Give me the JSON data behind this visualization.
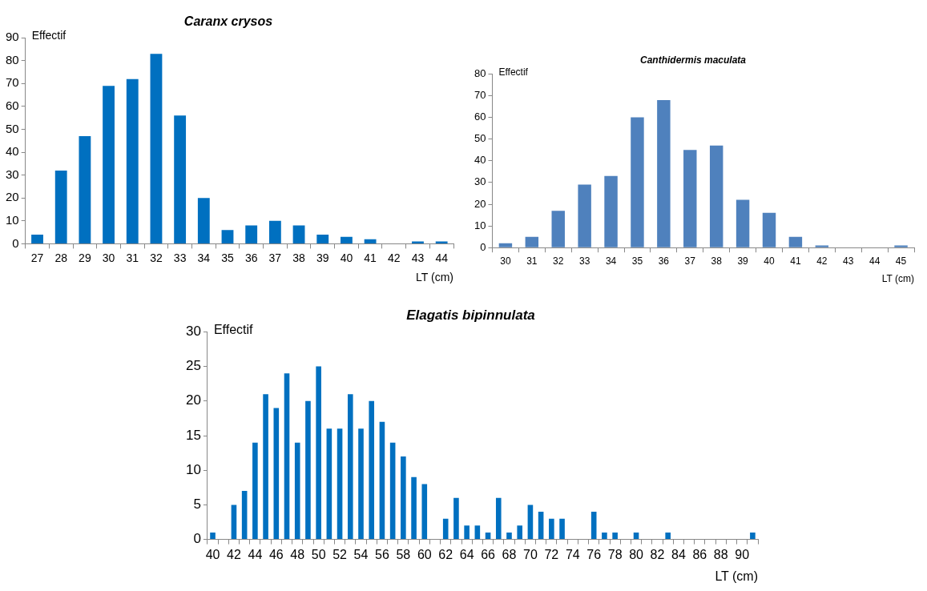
{
  "chart_data": [
    {
      "type": "bar",
      "title": "Caranx crysos",
      "ylabel": "Effectif",
      "xlabel": "LT (cm)",
      "categories": [
        "27",
        "28",
        "29",
        "30",
        "31",
        "32",
        "33",
        "34",
        "35",
        "36",
        "37",
        "38",
        "39",
        "40",
        "41",
        "42",
        "43",
        "44"
      ],
      "values": [
        4,
        32,
        47,
        69,
        72,
        83,
        56,
        20,
        6,
        8,
        10,
        8,
        4,
        3,
        2,
        0,
        1,
        1
      ],
      "color": "#0070c0",
      "ylim": [
        0,
        90
      ],
      "yticks": [
        0,
        10,
        20,
        30,
        40,
        50,
        60,
        70,
        80,
        90
      ],
      "grid": false,
      "legend": false
    },
    {
      "type": "bar",
      "title": "Canthidermis maculata",
      "ylabel": "Effectif",
      "xlabel": "LT (cm)",
      "categories": [
        "30",
        "31",
        "32",
        "33",
        "34",
        "35",
        "36",
        "37",
        "38",
        "39",
        "40",
        "41",
        "42",
        "43",
        "44",
        "45"
      ],
      "values": [
        2,
        5,
        17,
        29,
        33,
        60,
        68,
        45,
        47,
        22,
        16,
        5,
        1,
        0,
        0,
        1
      ],
      "color": "#4f81bd",
      "ylim": [
        0,
        80
      ],
      "yticks": [
        0,
        10,
        20,
        30,
        40,
        50,
        60,
        70,
        80
      ],
      "grid": false,
      "legend": false
    },
    {
      "type": "bar",
      "title": "Elagatis bipinnulata",
      "ylabel": "Effectif",
      "xlabel": "LT (cm)",
      "categories": [
        "40",
        null,
        "42",
        null,
        "44",
        null,
        "46",
        null,
        "48",
        null,
        "50",
        null,
        "52",
        null,
        "54",
        null,
        "56",
        null,
        "58",
        null,
        "60",
        null,
        "62",
        null,
        "64",
        null,
        "66",
        null,
        "68",
        null,
        "70",
        null,
        "72",
        null,
        "74",
        null,
        "76",
        null,
        "78",
        null,
        "80",
        null,
        "82",
        null,
        "84",
        null,
        "86",
        null,
        "88",
        null,
        "90",
        null
      ],
      "values": [
        1,
        0,
        5,
        7,
        14,
        21,
        19,
        24,
        14,
        20,
        25,
        16,
        16,
        21,
        16,
        20,
        17,
        14,
        12,
        9,
        8,
        0,
        3,
        6,
        2,
        2,
        1,
        6,
        1,
        2,
        5,
        4,
        3,
        3,
        0,
        0,
        4,
        1,
        1,
        0,
        1,
        0,
        0,
        1,
        0,
        0,
        0,
        0,
        0,
        0,
        0,
        1
      ],
      "color": "#0070c0",
      "ylim": [
        0,
        30
      ],
      "yticks": [
        0,
        5,
        10,
        15,
        20,
        25,
        30
      ],
      "grid": false,
      "legend": false
    }
  ]
}
